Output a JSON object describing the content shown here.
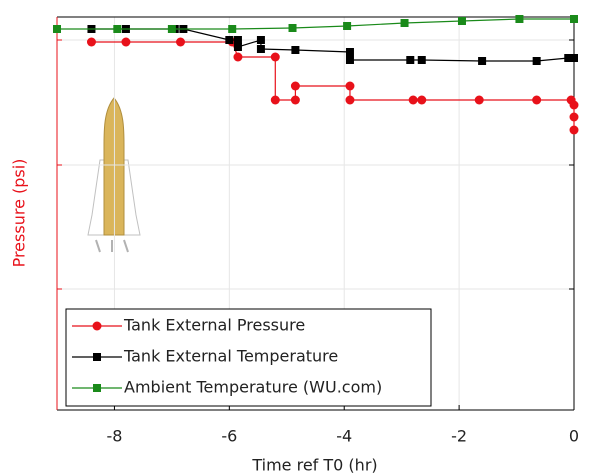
{
  "chart_data": {
    "type": "line",
    "xlabel": "Time ref T0 (hr)",
    "ylabel": "Pressure (psi)",
    "xlim": [
      -9,
      0
    ],
    "xticks": [
      -8,
      -6,
      -4,
      -2,
      0
    ],
    "ylim": [
      0,
      393
    ],
    "yticks": [
      121,
      245,
      370
    ],
    "grid": true,
    "legend": "lower left",
    "series": [
      {
        "name": "Tank External Pressure",
        "color": "#e8111a",
        "marker": "circle",
        "x": [
          -8.4,
          -7.8,
          -6.85,
          -5.95,
          -5.85,
          -5.2,
          -5.2,
          -4.85,
          -4.85,
          -3.9,
          -3.9,
          -2.8,
          -2.65,
          -1.65,
          -0.65,
          -0.05,
          0,
          0,
          0
        ],
        "values": [
          368,
          368,
          368,
          368,
          353,
          353,
          310,
          310,
          324,
          324,
          310,
          310,
          310,
          310,
          310,
          310,
          305,
          293,
          280
        ]
      },
      {
        "name": "Tank External Temperature",
        "color": "#000000",
        "marker": "square",
        "x": [
          -8.4,
          -7.8,
          -6.95,
          -6.8,
          -6,
          -5.85,
          -5.85,
          -5.45,
          -5.45,
          -4.85,
          -3.9,
          -3.9,
          -2.85,
          -2.65,
          -1.6,
          -0.65,
          -0.1,
          0
        ],
        "values": [
          381,
          381,
          381,
          381,
          370,
          370,
          363,
          370,
          361,
          360,
          358,
          350,
          350,
          350,
          349,
          349,
          352,
          352
        ]
      },
      {
        "name": "Ambient Temperature (WU.com)",
        "color": "#1a8a1a",
        "marker": "square",
        "x": [
          -9,
          -7.95,
          -7,
          -5.95,
          -4.9,
          -3.95,
          -2.95,
          -1.95,
          -0.95,
          0
        ],
        "values": [
          381,
          381,
          381,
          381,
          382,
          384,
          387,
          389,
          391,
          391
        ]
      }
    ]
  }
}
